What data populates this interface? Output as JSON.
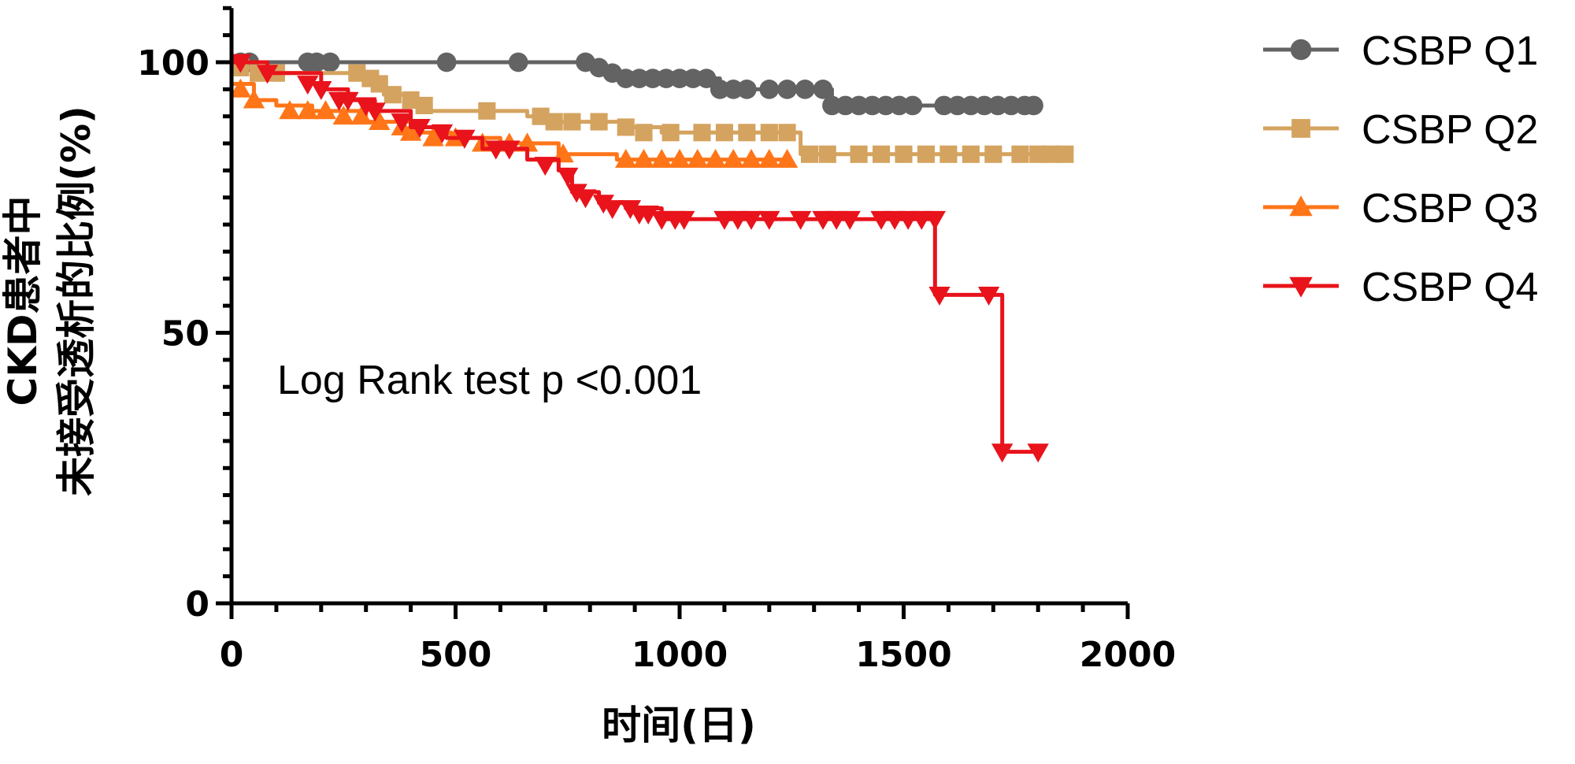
{
  "chart_data": {
    "type": "line",
    "subtype": "kaplan-meier",
    "title": "",
    "xlabel": "时间(日)",
    "ylabel_lines": [
      "CKD患者中",
      "未接受透析的比例(%)"
    ],
    "xlim": [
      0,
      2000
    ],
    "ylim": [
      0,
      110
    ],
    "x_ticks": [
      0,
      500,
      1000,
      1500,
      2000
    ],
    "y_ticks": [
      0,
      50,
      100
    ],
    "x_tick_labels": [
      "0",
      "500",
      "1000",
      "1500",
      "2000"
    ],
    "y_tick_labels": [
      "0",
      "50",
      "100"
    ],
    "annotation": "Log Rank test p <0.001",
    "legend_position": "top-right",
    "grid": false,
    "series": [
      {
        "name": "CSBP Q1",
        "color": "#636363",
        "marker": "circle",
        "steps": [
          [
            0,
            100
          ],
          [
            790,
            100
          ],
          [
            820,
            99
          ],
          [
            850,
            98
          ],
          [
            1070,
            97
          ],
          [
            1090,
            95
          ],
          [
            1320,
            95
          ],
          [
            1340,
            92
          ],
          [
            1790,
            92
          ]
        ],
        "markers": [
          [
            20,
            100
          ],
          [
            40,
            100
          ],
          [
            170,
            100
          ],
          [
            190,
            100
          ],
          [
            220,
            100
          ],
          [
            480,
            100
          ],
          [
            640,
            100
          ],
          [
            790,
            100
          ],
          [
            820,
            99
          ],
          [
            850,
            98
          ],
          [
            880,
            97
          ],
          [
            910,
            97
          ],
          [
            940,
            97
          ],
          [
            970,
            97
          ],
          [
            1000,
            97
          ],
          [
            1030,
            97
          ],
          [
            1060,
            97
          ],
          [
            1090,
            95
          ],
          [
            1120,
            95
          ],
          [
            1150,
            95
          ],
          [
            1200,
            95
          ],
          [
            1240,
            95
          ],
          [
            1280,
            95
          ],
          [
            1320,
            95
          ],
          [
            1340,
            92
          ],
          [
            1370,
            92
          ],
          [
            1400,
            92
          ],
          [
            1430,
            92
          ],
          [
            1460,
            92
          ],
          [
            1490,
            92
          ],
          [
            1520,
            92
          ],
          [
            1590,
            92
          ],
          [
            1620,
            92
          ],
          [
            1650,
            92
          ],
          [
            1680,
            92
          ],
          [
            1710,
            92
          ],
          [
            1740,
            92
          ],
          [
            1770,
            92
          ],
          [
            1790,
            92
          ]
        ]
      },
      {
        "name": "CSBP Q2",
        "color": "#d4a35f",
        "marker": "square",
        "steps": [
          [
            0,
            99
          ],
          [
            60,
            98
          ],
          [
            250,
            98
          ],
          [
            300,
            97
          ],
          [
            340,
            94
          ],
          [
            400,
            92
          ],
          [
            440,
            91
          ],
          [
            520,
            91
          ],
          [
            660,
            90
          ],
          [
            700,
            89
          ],
          [
            880,
            88
          ],
          [
            960,
            87
          ],
          [
            1240,
            87
          ],
          [
            1270,
            83
          ],
          [
            1860,
            83
          ]
        ],
        "markers": [
          [
            20,
            99
          ],
          [
            60,
            98
          ],
          [
            100,
            98
          ],
          [
            280,
            98
          ],
          [
            310,
            97
          ],
          [
            330,
            96
          ],
          [
            360,
            94
          ],
          [
            400,
            93
          ],
          [
            430,
            92
          ],
          [
            570,
            91
          ],
          [
            690,
            90
          ],
          [
            720,
            89
          ],
          [
            760,
            89
          ],
          [
            820,
            89
          ],
          [
            880,
            88
          ],
          [
            920,
            87
          ],
          [
            980,
            87
          ],
          [
            1050,
            87
          ],
          [
            1100,
            87
          ],
          [
            1150,
            87
          ],
          [
            1200,
            87
          ],
          [
            1240,
            87
          ],
          [
            1290,
            83
          ],
          [
            1330,
            83
          ],
          [
            1400,
            83
          ],
          [
            1450,
            83
          ],
          [
            1500,
            83
          ],
          [
            1550,
            83
          ],
          [
            1600,
            83
          ],
          [
            1650,
            83
          ],
          [
            1700,
            83
          ],
          [
            1760,
            83
          ],
          [
            1800,
            83
          ],
          [
            1830,
            83
          ],
          [
            1860,
            83
          ]
        ]
      },
      {
        "name": "CSBP Q3",
        "color": "#ff7518",
        "marker": "triangle-up",
        "steps": [
          [
            0,
            96
          ],
          [
            50,
            93
          ],
          [
            100,
            92
          ],
          [
            180,
            91
          ],
          [
            300,
            89
          ],
          [
            400,
            87
          ],
          [
            490,
            86
          ],
          [
            600,
            85
          ],
          [
            730,
            83
          ],
          [
            860,
            82
          ],
          [
            1250,
            82
          ]
        ],
        "markers": [
          [
            20,
            95
          ],
          [
            50,
            93
          ],
          [
            130,
            91
          ],
          [
            170,
            91
          ],
          [
            210,
            91
          ],
          [
            250,
            90
          ],
          [
            290,
            90
          ],
          [
            330,
            89
          ],
          [
            380,
            88
          ],
          [
            400,
            87
          ],
          [
            450,
            86
          ],
          [
            500,
            86
          ],
          [
            560,
            85
          ],
          [
            620,
            85
          ],
          [
            660,
            85
          ],
          [
            740,
            83
          ],
          [
            880,
            82
          ],
          [
            920,
            82
          ],
          [
            960,
            82
          ],
          [
            1000,
            82
          ],
          [
            1040,
            82
          ],
          [
            1080,
            82
          ],
          [
            1120,
            82
          ],
          [
            1160,
            82
          ],
          [
            1200,
            82
          ],
          [
            1240,
            82
          ]
        ]
      },
      {
        "name": "CSBP Q4",
        "color": "#e8131b",
        "marker": "triangle-down",
        "steps": [
          [
            0,
            100
          ],
          [
            80,
            98
          ],
          [
            200,
            95
          ],
          [
            260,
            93
          ],
          [
            320,
            91
          ],
          [
            400,
            88
          ],
          [
            480,
            86
          ],
          [
            560,
            84
          ],
          [
            660,
            82
          ],
          [
            730,
            80
          ],
          [
            760,
            76
          ],
          [
            820,
            74
          ],
          [
            880,
            73
          ],
          [
            960,
            71
          ],
          [
            1570,
            71
          ],
          [
            1570,
            57
          ],
          [
            1700,
            57
          ],
          [
            1720,
            28
          ],
          [
            1810,
            28
          ]
        ],
        "markers": [
          [
            20,
            100
          ],
          [
            80,
            98
          ],
          [
            170,
            96
          ],
          [
            200,
            95
          ],
          [
            240,
            93
          ],
          [
            260,
            93
          ],
          [
            300,
            92
          ],
          [
            320,
            91
          ],
          [
            380,
            89
          ],
          [
            420,
            88
          ],
          [
            470,
            87
          ],
          [
            520,
            86
          ],
          [
            590,
            84
          ],
          [
            620,
            84
          ],
          [
            700,
            81
          ],
          [
            750,
            79
          ],
          [
            770,
            76
          ],
          [
            790,
            75
          ],
          [
            830,
            74
          ],
          [
            850,
            73
          ],
          [
            890,
            73
          ],
          [
            910,
            72
          ],
          [
            930,
            72
          ],
          [
            960,
            71
          ],
          [
            990,
            71
          ],
          [
            1010,
            71
          ],
          [
            1100,
            71
          ],
          [
            1130,
            71
          ],
          [
            1160,
            71
          ],
          [
            1200,
            71
          ],
          [
            1270,
            71
          ],
          [
            1320,
            71
          ],
          [
            1350,
            71
          ],
          [
            1380,
            71
          ],
          [
            1450,
            71
          ],
          [
            1480,
            71
          ],
          [
            1510,
            71
          ],
          [
            1540,
            71
          ],
          [
            1570,
            71
          ],
          [
            1580,
            57
          ],
          [
            1690,
            57
          ],
          [
            1720,
            28
          ],
          [
            1800,
            28
          ]
        ]
      }
    ]
  }
}
